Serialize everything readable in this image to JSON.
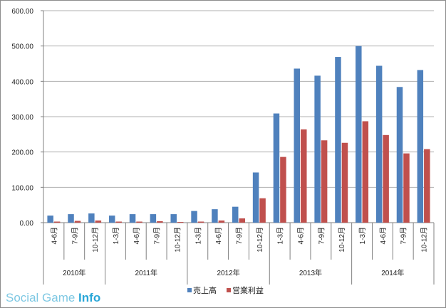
{
  "chart_data": {
    "type": "bar",
    "ylim": [
      0,
      600
    ],
    "yticks": [
      "0.00",
      "100.00",
      "200.00",
      "300.00",
      "400.00",
      "500.00",
      "600.00"
    ],
    "grid": true,
    "legend_position": "bottom",
    "categories": [
      "4-6月",
      "7-9月",
      "10-12月",
      "1-3月",
      "4-6月",
      "7-9月",
      "10-12月",
      "1-3月",
      "4-6月",
      "7-9月",
      "10-12月",
      "1-3月",
      "4-6月",
      "7-9月",
      "10-12月",
      "1-3月",
      "4-6月",
      "7-9月",
      "10-12月"
    ],
    "years": [
      {
        "label": "2010年",
        "count": 3
      },
      {
        "label": "2011年",
        "count": 4
      },
      {
        "label": "2012年",
        "count": 4
      },
      {
        "label": "2013年",
        "count": 4
      },
      {
        "label": "2014年",
        "count": 4
      }
    ],
    "series": [
      {
        "name": "売上高",
        "color": "#4f81bd",
        "values": [
          20,
          24,
          26,
          20,
          24,
          24,
          24,
          33,
          38,
          45,
          142,
          309,
          436,
          416,
          469,
          500,
          444,
          384,
          432
        ]
      },
      {
        "name": "営業利益",
        "color": "#c0504d",
        "values": [
          3,
          5,
          6,
          3,
          3,
          4,
          2,
          3,
          6,
          12,
          69,
          186,
          264,
          233,
          226,
          287,
          248,
          196,
          208
        ]
      }
    ]
  },
  "watermark": {
    "light": "Social Game ",
    "bold": "Info"
  }
}
